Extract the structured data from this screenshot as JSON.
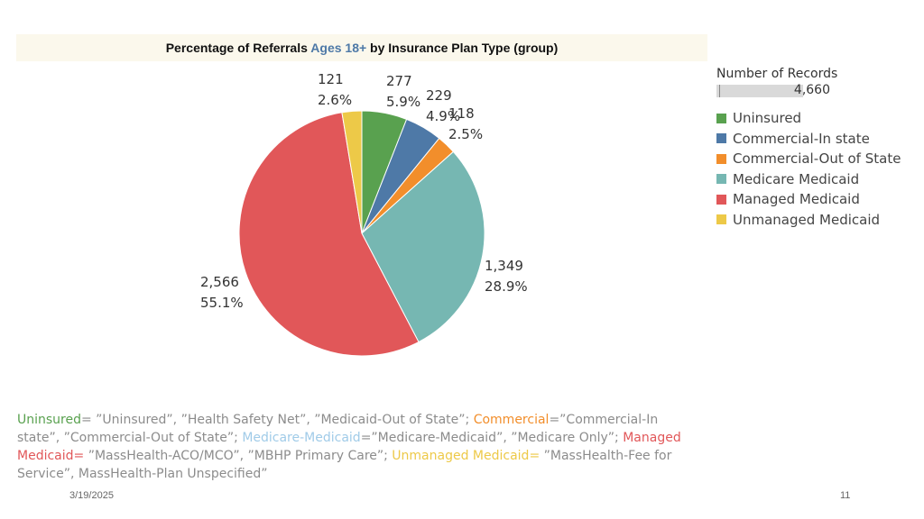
{
  "title": {
    "before": "Percentage of Referrals ",
    "highlight": "Ages 18+",
    "after": " by Insurance Plan Type (group)"
  },
  "legend": {
    "size_title": "Number of Records",
    "size_value": "4,660",
    "items": [
      {
        "label": "Uninsured",
        "color": "#59a14f"
      },
      {
        "label": "Commercial-In state",
        "color": "#4e79a7"
      },
      {
        "label": "Commercial-Out of State",
        "color": "#f28e2b"
      },
      {
        "label": "Medicare Medicaid",
        "color": "#76b7b2"
      },
      {
        "label": "Managed Medicaid",
        "color": "#e15759"
      },
      {
        "label": "Unmanaged Medicaid",
        "color": "#edc948"
      }
    ]
  },
  "chart_data": {
    "type": "pie",
    "title": "Percentage of Referrals Ages 18+ by Insurance Plan Type (group)",
    "slices": [
      {
        "label": "Uninsured",
        "value": 277,
        "value_label": "277",
        "pct_label": "5.9%",
        "color": "#59a14f"
      },
      {
        "label": "Commercial-In state",
        "value": 229,
        "value_label": "229",
        "pct_label": "4.9%",
        "color": "#4e79a7"
      },
      {
        "label": "Commercial-Out of State",
        "value": 118,
        "value_label": "118",
        "pct_label": "2.5%",
        "color": "#f28e2b"
      },
      {
        "label": "Medicare Medicaid",
        "value": 1349,
        "value_label": "1,349",
        "pct_label": "28.9%",
        "color": "#76b7b2"
      },
      {
        "label": "Managed Medicaid",
        "value": 2566,
        "value_label": "2,566",
        "pct_label": "55.1%",
        "color": "#e15759"
      },
      {
        "label": "Unmanaged Medicaid",
        "value": 121,
        "value_label": "121",
        "pct_label": "2.6%",
        "color": "#edc948"
      }
    ],
    "total": 4660
  },
  "notes": {
    "uninsured_key": "Uninsured",
    "uninsured_val": "= ”Uninsured”, ”Health Safety Net”, ”Medicaid-Out of State”; ",
    "commercial_key": "Commercial",
    "commercial_val": "=”Commercial-In state”, ”Commercial-Out of State”; ",
    "medicare_key": "Medicare-Medicaid",
    "medicare_val": "=”Medicare-Medicaid”, ”Medicare Only”; ",
    "managed_key": "Managed Medicaid=",
    "managed_val": " ”MassHealth-ACO/MCO”, ”MBHP Primary Care”; ",
    "unmanaged_key": "Unmanaged Medicaid=",
    "unmanaged_val": " ”MassHealth-Fee for Service”, MassHealth-Plan Unspecified”"
  },
  "footer": {
    "date": "3/19/2025",
    "page": "11"
  }
}
